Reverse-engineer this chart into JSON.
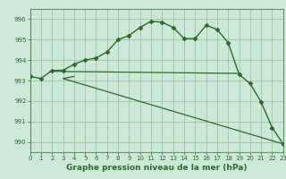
{
  "lines": [
    {
      "x": [
        0,
        1,
        2,
        3,
        4,
        5,
        6,
        7,
        8,
        9,
        10,
        11,
        12,
        13,
        14,
        15,
        16,
        17,
        18,
        19,
        20,
        21,
        22,
        23
      ],
      "y": [
        993.2,
        993.1,
        993.5,
        993.5,
        993.8,
        994.0,
        994.1,
        994.4,
        995.0,
        995.2,
        995.6,
        995.9,
        995.85,
        995.6,
        995.05,
        995.05,
        995.7,
        995.5,
        994.85,
        993.3,
        992.85,
        991.95,
        990.7,
        989.9
      ],
      "marker": "D",
      "markersize": 2.5,
      "color": "#2d6a2d",
      "linewidth": 1.0,
      "zorder": 3
    },
    {
      "x": [
        2,
        19
      ],
      "y": [
        993.45,
        993.35
      ],
      "marker": null,
      "markersize": 0,
      "color": "#2d6a2d",
      "linewidth": 0.9,
      "zorder": 2
    },
    {
      "x": [
        3,
        23
      ],
      "y": [
        993.1,
        989.9
      ],
      "marker": null,
      "markersize": 0,
      "color": "#2d6a2d",
      "linewidth": 0.9,
      "zorder": 2
    },
    {
      "x": [
        3,
        4
      ],
      "y": [
        993.1,
        993.2
      ],
      "marker": null,
      "markersize": 0,
      "color": "#2d6a2d",
      "linewidth": 0.9,
      "zorder": 2
    }
  ],
  "xlim": [
    0,
    23
  ],
  "ylim": [
    989.5,
    996.5
  ],
  "yticks": [
    990,
    991,
    992,
    993,
    994,
    995,
    996
  ],
  "xticks": [
    0,
    1,
    2,
    3,
    4,
    5,
    6,
    7,
    8,
    9,
    10,
    11,
    12,
    13,
    14,
    15,
    16,
    17,
    18,
    19,
    20,
    21,
    22,
    23
  ],
  "xlabel": "Graphe pression niveau de la mer (hPa)",
  "background_color": "#cce8d8",
  "grid_color": "#99bb99",
  "line_color": "#2d6a2d",
  "tick_fontsize": 5.0,
  "label_fontsize": 6.5
}
